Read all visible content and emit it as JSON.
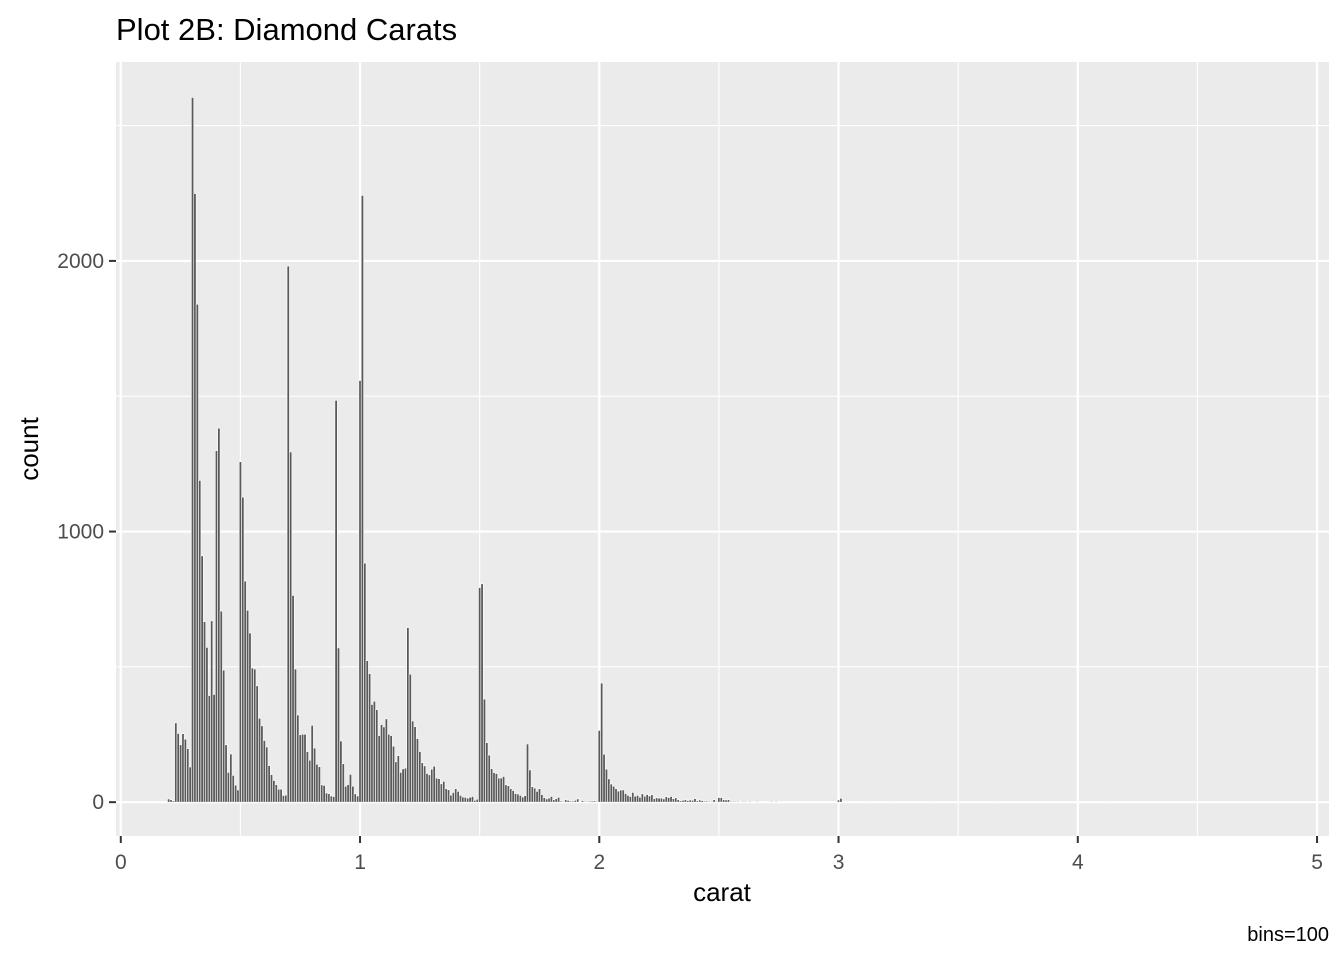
{
  "chart_data": {
    "type": "bar",
    "title": "Plot 2B: Diamond Carats",
    "xlabel": "carat",
    "ylabel": "count",
    "caption": "bins=100",
    "xlim": [
      -0.02,
      5.05
    ],
    "ylim": [
      -125,
      2735
    ],
    "x_ticks": [
      0,
      1,
      2,
      3,
      4,
      5
    ],
    "x_tick_labels": [
      "0",
      "1",
      "2",
      "3",
      "4",
      "5"
    ],
    "y_ticks": [
      0,
      1000,
      2000
    ],
    "y_tick_labels": [
      "0",
      "1000",
      "2000"
    ],
    "grid": true,
    "colors": {
      "panel": "#ebebeb",
      "grid": "#ffffff",
      "bar_fill": "#595959",
      "bar_outline": "#ffffff"
    },
    "bars": [
      [
        0.2,
        12
      ],
      [
        0.21,
        9
      ],
      [
        0.22,
        5
      ],
      [
        0.23,
        293
      ],
      [
        0.24,
        254
      ],
      [
        0.25,
        212
      ],
      [
        0.26,
        253
      ],
      [
        0.27,
        233
      ],
      [
        0.28,
        198
      ],
      [
        0.29,
        130
      ],
      [
        0.3,
        2604
      ],
      [
        0.31,
        2249
      ],
      [
        0.32,
        1840
      ],
      [
        0.33,
        1189
      ],
      [
        0.34,
        910
      ],
      [
        0.35,
        667
      ],
      [
        0.36,
        572
      ],
      [
        0.37,
        394
      ],
      [
        0.38,
        670
      ],
      [
        0.39,
        398
      ],
      [
        0.4,
        1299
      ],
      [
        0.41,
        1382
      ],
      [
        0.42,
        706
      ],
      [
        0.43,
        488
      ],
      [
        0.44,
        212
      ],
      [
        0.45,
        110
      ],
      [
        0.46,
        178
      ],
      [
        0.47,
        99
      ],
      [
        0.48,
        63
      ],
      [
        0.49,
        45
      ],
      [
        0.5,
        1258
      ],
      [
        0.51,
        1127
      ],
      [
        0.52,
        817
      ],
      [
        0.53,
        709
      ],
      [
        0.54,
        625
      ],
      [
        0.55,
        496
      ],
      [
        0.56,
        492
      ],
      [
        0.57,
        430
      ],
      [
        0.58,
        310
      ],
      [
        0.59,
        282
      ],
      [
        0.6,
        228
      ],
      [
        0.61,
        204
      ],
      [
        0.62,
        135
      ],
      [
        0.63,
        102
      ],
      [
        0.64,
        80
      ],
      [
        0.65,
        65
      ],
      [
        0.66,
        48
      ],
      [
        0.67,
        48
      ],
      [
        0.68,
        25
      ],
      [
        0.69,
        26
      ],
      [
        0.7,
        1981
      ],
      [
        0.71,
        1294
      ],
      [
        0.72,
        764
      ],
      [
        0.73,
        492
      ],
      [
        0.74,
        322
      ],
      [
        0.75,
        249
      ],
      [
        0.76,
        251
      ],
      [
        0.77,
        251
      ],
      [
        0.78,
        187
      ],
      [
        0.79,
        155
      ],
      [
        0.8,
        284
      ],
      [
        0.81,
        200
      ],
      [
        0.82,
        140
      ],
      [
        0.83,
        131
      ],
      [
        0.84,
        64
      ],
      [
        0.85,
        62
      ],
      [
        0.86,
        34
      ],
      [
        0.87,
        31
      ],
      [
        0.88,
        23
      ],
      [
        0.89,
        21
      ],
      [
        0.9,
        1485
      ],
      [
        0.91,
        570
      ],
      [
        0.92,
        226
      ],
      [
        0.93,
        142
      ],
      [
        0.94,
        59
      ],
      [
        0.95,
        65
      ],
      [
        0.96,
        103
      ],
      [
        0.97,
        59
      ],
      [
        0.98,
        31
      ],
      [
        0.99,
        23
      ],
      [
        1.0,
        1558
      ],
      [
        1.01,
        2242
      ],
      [
        1.02,
        883
      ],
      [
        1.03,
        523
      ],
      [
        1.04,
        475
      ],
      [
        1.05,
        361
      ],
      [
        1.06,
        373
      ],
      [
        1.07,
        342
      ],
      [
        1.08,
        246
      ],
      [
        1.09,
        287
      ],
      [
        1.1,
        278
      ],
      [
        1.11,
        308
      ],
      [
        1.12,
        251
      ],
      [
        1.13,
        246
      ],
      [
        1.14,
        207
      ],
      [
        1.15,
        149
      ],
      [
        1.16,
        172
      ],
      [
        1.17,
        110
      ],
      [
        1.18,
        123
      ],
      [
        1.19,
        126
      ],
      [
        1.2,
        645
      ],
      [
        1.21,
        473
      ],
      [
        1.22,
        300
      ],
      [
        1.23,
        279
      ],
      [
        1.24,
        235
      ],
      [
        1.25,
        187
      ],
      [
        1.26,
        146
      ],
      [
        1.27,
        134
      ],
      [
        1.28,
        106
      ],
      [
        1.29,
        101
      ],
      [
        1.3,
        122
      ],
      [
        1.31,
        133
      ],
      [
        1.32,
        89
      ],
      [
        1.33,
        87
      ],
      [
        1.34,
        68
      ],
      [
        1.35,
        77
      ],
      [
        1.36,
        50
      ],
      [
        1.37,
        46
      ],
      [
        1.38,
        26
      ],
      [
        1.39,
        36
      ],
      [
        1.4,
        50
      ],
      [
        1.41,
        40
      ],
      [
        1.42,
        25
      ],
      [
        1.43,
        19
      ],
      [
        1.44,
        18
      ],
      [
        1.45,
        15
      ],
      [
        1.46,
        18
      ],
      [
        1.47,
        21
      ],
      [
        1.48,
        7
      ],
      [
        1.49,
        11
      ],
      [
        1.5,
        793
      ],
      [
        1.51,
        807
      ],
      [
        1.52,
        381
      ],
      [
        1.53,
        220
      ],
      [
        1.54,
        174
      ],
      [
        1.55,
        124
      ],
      [
        1.56,
        109
      ],
      [
        1.57,
        106
      ],
      [
        1.58,
        89
      ],
      [
        1.59,
        89
      ],
      [
        1.6,
        95
      ],
      [
        1.61,
        64
      ],
      [
        1.62,
        61
      ],
      [
        1.63,
        50
      ],
      [
        1.64,
        43
      ],
      [
        1.65,
        32
      ],
      [
        1.66,
        30
      ],
      [
        1.67,
        25
      ],
      [
        1.68,
        19
      ],
      [
        1.69,
        24
      ],
      [
        1.7,
        215
      ],
      [
        1.71,
        119
      ],
      [
        1.72,
        57
      ],
      [
        1.73,
        52
      ],
      [
        1.74,
        40
      ],
      [
        1.75,
        50
      ],
      [
        1.76,
        28
      ],
      [
        1.77,
        17
      ],
      [
        1.78,
        12
      ],
      [
        1.79,
        15
      ],
      [
        1.8,
        21
      ],
      [
        1.81,
        9
      ],
      [
        1.82,
        13
      ],
      [
        1.83,
        18
      ],
      [
        1.84,
        4
      ],
      [
        1.85,
        3
      ],
      [
        1.86,
        9
      ],
      [
        1.87,
        7
      ],
      [
        1.88,
        4
      ],
      [
        1.89,
        4
      ],
      [
        1.9,
        7
      ],
      [
        1.91,
        12
      ],
      [
        1.92,
        2
      ],
      [
        1.93,
        6
      ],
      [
        1.94,
        3
      ],
      [
        1.95,
        3
      ],
      [
        1.96,
        4
      ],
      [
        1.97,
        4
      ],
      [
        1.98,
        5
      ],
      [
        1.99,
        3
      ],
      [
        2.0,
        265
      ],
      [
        2.01,
        440
      ],
      [
        2.02,
        177
      ],
      [
        2.03,
        122
      ],
      [
        2.04,
        86
      ],
      [
        2.05,
        67
      ],
      [
        2.06,
        59
      ],
      [
        2.07,
        50
      ],
      [
        2.08,
        41
      ],
      [
        2.09,
        45
      ],
      [
        2.1,
        45
      ],
      [
        2.11,
        32
      ],
      [
        2.12,
        25
      ],
      [
        2.13,
        21
      ],
      [
        2.14,
        36
      ],
      [
        2.15,
        22
      ],
      [
        2.16,
        25
      ],
      [
        2.17,
        18
      ],
      [
        2.18,
        31
      ],
      [
        2.19,
        22
      ],
      [
        2.2,
        28
      ],
      [
        2.21,
        23
      ],
      [
        2.22,
        27
      ],
      [
        2.23,
        13
      ],
      [
        2.24,
        16
      ],
      [
        2.25,
        15
      ],
      [
        2.26,
        15
      ],
      [
        2.27,
        12
      ],
      [
        2.28,
        20
      ],
      [
        2.29,
        17
      ],
      [
        2.3,
        21
      ],
      [
        2.31,
        13
      ],
      [
        2.32,
        16
      ],
      [
        2.33,
        9
      ],
      [
        2.34,
        5
      ],
      [
        2.35,
        7
      ],
      [
        2.36,
        9
      ],
      [
        2.37,
        6
      ],
      [
        2.38,
        8
      ],
      [
        2.39,
        7
      ],
      [
        2.4,
        13
      ],
      [
        2.41,
        5
      ],
      [
        2.42,
        8
      ],
      [
        2.43,
        6
      ],
      [
        2.44,
        4
      ],
      [
        2.45,
        4
      ],
      [
        2.46,
        3
      ],
      [
        2.47,
        3
      ],
      [
        2.48,
        9
      ],
      [
        2.49,
        3
      ],
      [
        2.5,
        17
      ],
      [
        2.51,
        17
      ],
      [
        2.52,
        9
      ],
      [
        2.53,
        8
      ],
      [
        2.54,
        9
      ],
      [
        2.55,
        3
      ],
      [
        2.56,
        3
      ],
      [
        2.57,
        3
      ],
      [
        2.58,
        3
      ],
      [
        2.59,
        1
      ],
      [
        2.6,
        3
      ],
      [
        2.61,
        3
      ],
      [
        2.62,
        1
      ],
      [
        2.63,
        3
      ],
      [
        2.64,
        1
      ],
      [
        2.65,
        1
      ],
      [
        2.66,
        3
      ],
      [
        2.67,
        1
      ],
      [
        2.68,
        2
      ],
      [
        2.7,
        1
      ],
      [
        2.71,
        1
      ],
      [
        2.72,
        3
      ],
      [
        2.73,
        1
      ],
      [
        2.74,
        3
      ],
      [
        2.75,
        2
      ],
      [
        2.76,
        1
      ],
      [
        2.77,
        1
      ],
      [
        2.78,
        1
      ],
      [
        2.8,
        2
      ],
      [
        3.0,
        8
      ],
      [
        3.01,
        14
      ],
      [
        3.02,
        1
      ],
      [
        3.04,
        2
      ],
      [
        3.05,
        1
      ],
      [
        3.11,
        1
      ],
      [
        3.22,
        1
      ],
      [
        3.24,
        1
      ],
      [
        3.4,
        1
      ],
      [
        3.5,
        1
      ],
      [
        3.51,
        1
      ],
      [
        3.65,
        1
      ],
      [
        3.67,
        1
      ],
      [
        4.0,
        1
      ],
      [
        4.01,
        2
      ],
      [
        4.13,
        1
      ],
      [
        4.5,
        1
      ],
      [
        5.01,
        1
      ]
    ]
  }
}
